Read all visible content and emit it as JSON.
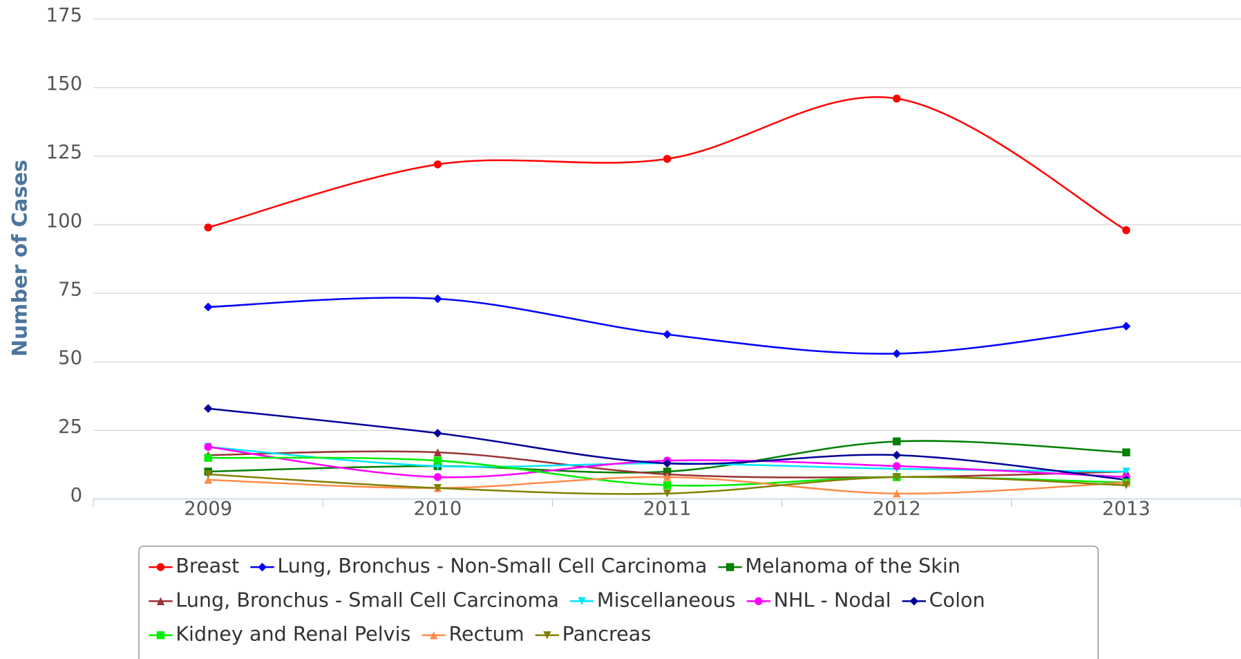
{
  "chart_data": {
    "type": "line",
    "y_label": "Number of Cases",
    "categories": [
      "2009",
      "2010",
      "2011",
      "2012",
      "2013"
    ],
    "ylim": [
      0,
      175
    ],
    "yticks": [
      0,
      25,
      50,
      75,
      100,
      125,
      150,
      175
    ],
    "grid": true,
    "smooth": true,
    "legend": "bottom",
    "series": [
      {
        "name": "Breast",
        "color": "#ff0000",
        "marker": "circle",
        "values": [
          99,
          122,
          124,
          146,
          98
        ]
      },
      {
        "name": "Lung, Bronchus - Non-Small Cell Carcinoma",
        "color": "#0000ff",
        "marker": "diamond",
        "values": [
          70,
          73,
          60,
          53,
          63
        ]
      },
      {
        "name": "Melanoma of the Skin",
        "color": "#008000",
        "marker": "square",
        "values": [
          10,
          12,
          10,
          21,
          17
        ]
      },
      {
        "name": "Lung, Bronchus - Small Cell Carcinoma",
        "color": "#993333",
        "marker": "triangle",
        "values": [
          16,
          17,
          9,
          8,
          10
        ]
      },
      {
        "name": "Miscellaneous",
        "color": "#00e5ff",
        "marker": "triangle-down",
        "values": [
          19,
          12,
          13,
          11,
          10
        ]
      },
      {
        "name": "NHL - Nodal",
        "color": "#ff00ff",
        "marker": "circle",
        "values": [
          19,
          8,
          14,
          12,
          8
        ]
      },
      {
        "name": "Colon",
        "color": "#000099",
        "marker": "diamond",
        "values": [
          33,
          24,
          13,
          16,
          7
        ]
      },
      {
        "name": "Kidney and Renal Pelvis",
        "color": "#00ee00",
        "marker": "square",
        "values": [
          15,
          14,
          5,
          8,
          6
        ]
      },
      {
        "name": "Rectum",
        "color": "#ff8c4a",
        "marker": "triangle",
        "values": [
          7,
          4,
          8,
          2,
          6
        ]
      },
      {
        "name": "Pancreas",
        "color": "#808000",
        "marker": "triangle-down",
        "values": [
          9,
          4,
          2,
          8,
          5
        ]
      }
    ]
  }
}
